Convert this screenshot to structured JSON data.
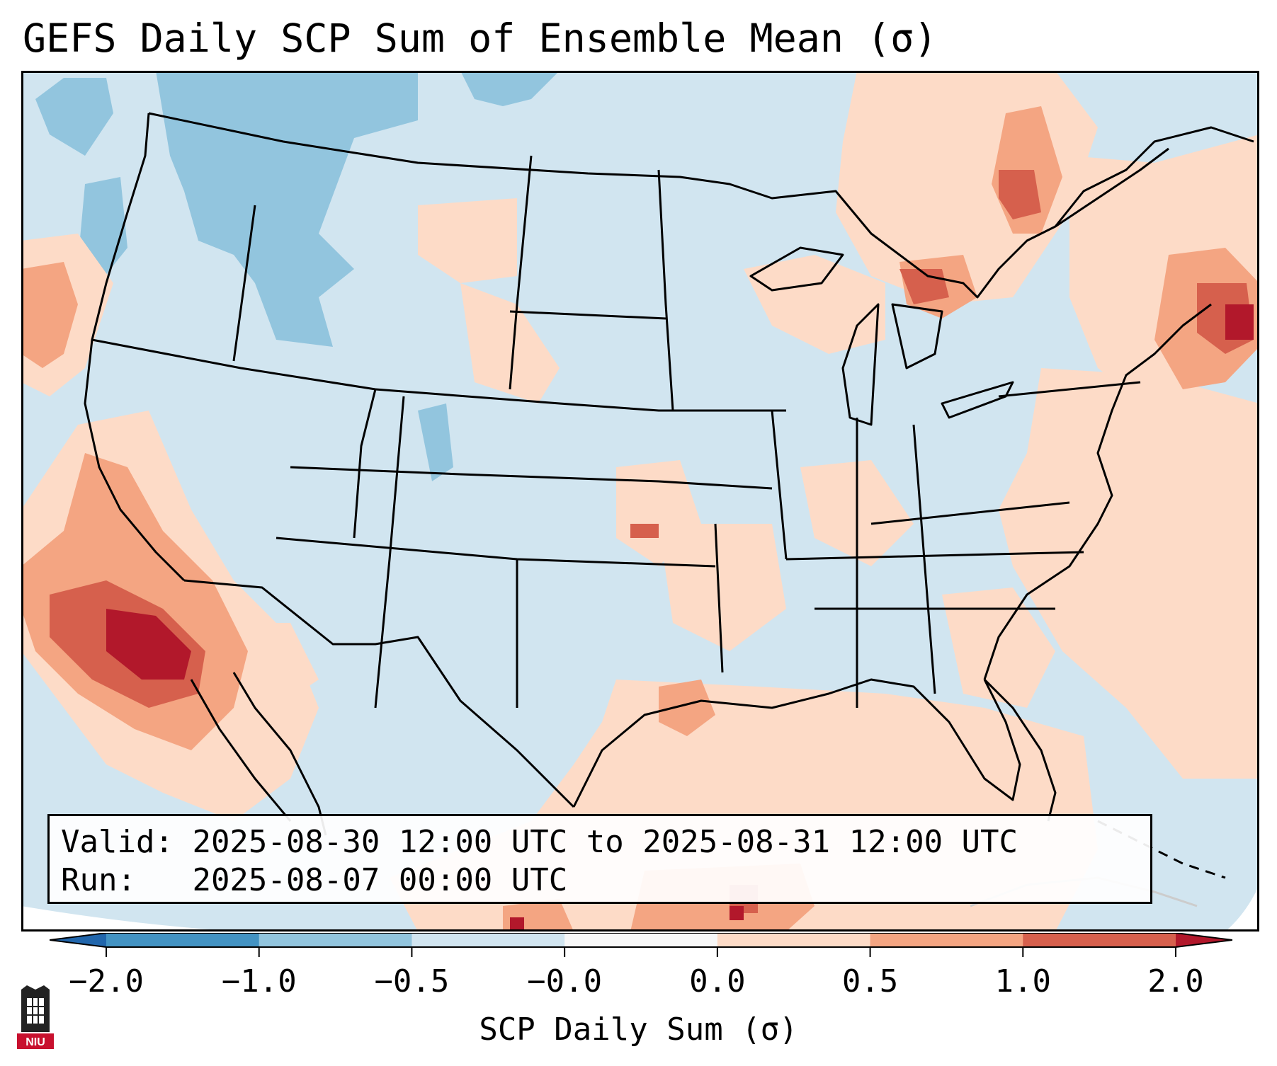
{
  "title": "GEFS Daily SCP Sum of Ensemble Mean (σ)",
  "info": {
    "valid_label": "Valid:",
    "valid_value": "2025-08-30 12:00 UTC to 2025-08-31 12:00 UTC",
    "run_label": "Run:",
    "run_value": "2025-08-07 00:00 UTC"
  },
  "colorbar": {
    "label": "SCP Daily Sum (σ)",
    "ticks": [
      "−2.0",
      "−1.0",
      "−0.5",
      "−0.0",
      "0.0",
      "0.5",
      "1.0",
      "2.0"
    ],
    "colors": [
      "#4393c3",
      "#92c5de",
      "#d1e5f0",
      "#f7f7f7",
      "#fddbc7",
      "#f4a582",
      "#d6604d"
    ],
    "under_color": "#2166ac",
    "over_color": "#b2182b"
  },
  "logo_text": "NIU",
  "chart_data": {
    "type": "heatmap",
    "title": "GEFS Daily SCP Sum of Ensemble Mean (σ)",
    "variable": "SCP Daily Sum (σ)",
    "bounds": [
      -2.0,
      -1.0,
      -0.5,
      -0.0,
      0.0,
      0.5,
      1.0,
      2.0
    ],
    "domain": "Contiguous United States",
    "regions": [
      {
        "name": "Background (most of CONUS and oceans)",
        "value_range": [
          -0.5,
          0.0
        ]
      },
      {
        "name": "Pacific Northwest / Northern Rockies",
        "value_range": [
          -1.0,
          -0.5
        ]
      },
      {
        "name": "Gulf of California / NW Mexico",
        "value_range": [
          1.0,
          2.0
        ]
      },
      {
        "name": "Southern Ontario / Lake Huron",
        "value_range": [
          0.5,
          1.0
        ]
      },
      {
        "name": "Gulf of Maine offshore",
        "value_range": [
          1.0,
          2.0
        ]
      },
      {
        "name": "Gulf of Mexico / Southeast coast",
        "value_range": [
          0.0,
          0.5
        ]
      }
    ]
  }
}
